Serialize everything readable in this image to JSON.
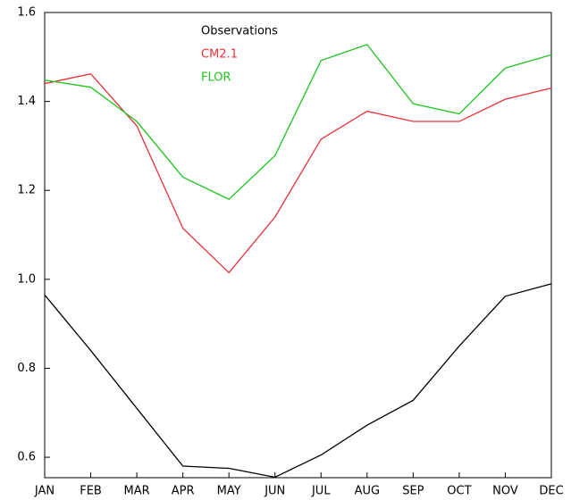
{
  "chart_data": {
    "type": "line",
    "categories": [
      "JAN",
      "FEB",
      "MAR",
      "APR",
      "MAY",
      "JUN",
      "JUL",
      "AUG",
      "SEP",
      "OCT",
      "NOV",
      "DEC"
    ],
    "series": [
      {
        "name": "Observations",
        "color": "#000000",
        "values": [
          0.965,
          0.84,
          0.71,
          0.58,
          0.575,
          0.555,
          0.605,
          0.672,
          0.728,
          0.85,
          0.962,
          0.99
        ]
      },
      {
        "name": "CM2.1",
        "color": "#e8313a",
        "values": [
          1.44,
          1.462,
          1.345,
          1.115,
          1.015,
          1.14,
          1.315,
          1.378,
          1.355,
          1.355,
          1.405,
          1.43
        ]
      },
      {
        "name": "FLOR",
        "color": "#1fc41f",
        "values": [
          1.448,
          1.432,
          1.355,
          1.23,
          1.18,
          1.278,
          1.492,
          1.528,
          1.395,
          1.372,
          1.475,
          1.505
        ]
      }
    ],
    "ylim": [
      0.554,
      1.6
    ],
    "yticks": [
      0.6,
      0.8,
      {
        "value": 1,
        "label": "1.0"
      },
      1.2,
      1.4,
      1.6
    ],
    "grid": false
  }
}
